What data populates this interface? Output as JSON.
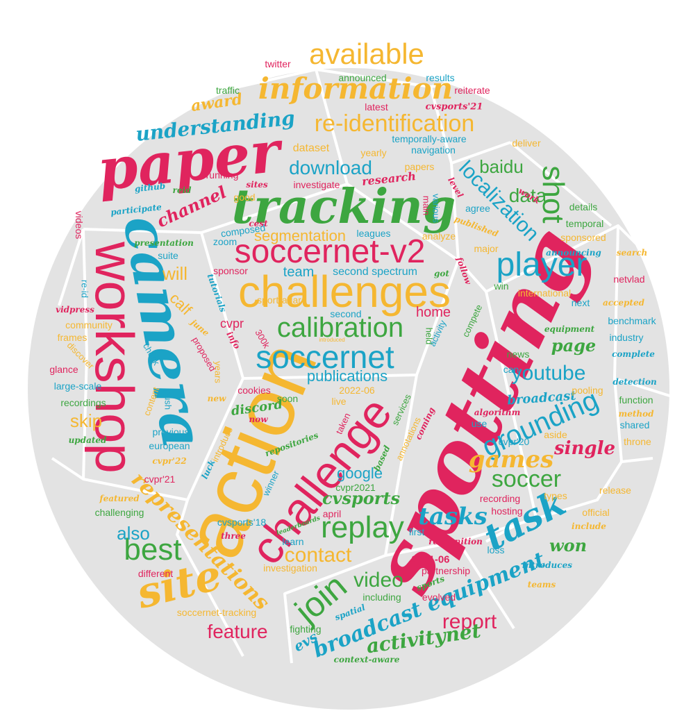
{
  "colors": {
    "red": "#e0245e",
    "yellow": "#f5b731",
    "blue": "#1ba3c6",
    "green": "#3da640",
    "panel": "#e3e3e3",
    "seam": "#ffffff"
  },
  "words": {
    "spotting": "spotting",
    "action": "action",
    "challenges": "challenges",
    "camera": "camera",
    "workshop": "workshop",
    "paper": "paper",
    "tracking": "tracking",
    "soccernet_v2": "soccernet-v2",
    "challenge": "challenge",
    "soccernet": "soccernet",
    "calibration": "calibration",
    "player": "player",
    "information": "information",
    "available": "available",
    "re_identification": "re-identification",
    "grounding": "grounding",
    "replay": "replay",
    "task": "task",
    "site": "site",
    "join": "join",
    "best": "best",
    "shot": "shot",
    "localization": "localization",
    "soccer": "soccer",
    "representations": "representations",
    "broadcast_equipment": "broadcast equipment",
    "games": "games",
    "youtube": "youtube",
    "tasks": "tasks",
    "video": "video",
    "contact": "contact",
    "report": "report",
    "understanding": "understanding",
    "download": "download",
    "feature": "feature",
    "activitynet": "activitynet",
    "also": "also",
    "data": "data",
    "baidu": "baidu",
    "publications": "publications",
    "segmentation": "segmentation",
    "skip": "skip",
    "google": "google",
    "channel": "channel",
    "will": "will",
    "calf": "calf",
    "cvsports": "cvsports",
    "single": "single",
    "page": "page",
    "award": "award",
    "won": "won",
    "team": "team",
    "home": "home",
    "cvpr": "cvpr",
    "evs": "evs",
    "discord": "discord",
    "broadcast": "broadcast",
    "dataset": "dataset",
    "research": "research",
    "twitter": "twitter",
    "announced": "announced",
    "results": "results",
    "reiterate": "reiterate",
    "traffic": "traffic",
    "latest": "latest",
    "cvsports21": "cvsports'21",
    "deliver": "deliver",
    "temporally_aware": "temporally-aware",
    "navigation": "navigation",
    "yearly": "yearly",
    "papers": "papers",
    "running": "running",
    "github": "github",
    "reid": "reid",
    "sites": "sites",
    "investigate": "investigate",
    "level": "level",
    "work": "work",
    "participate": "participate",
    "good": "good",
    "main": "main",
    "agree": "agree",
    "details": "details",
    "videos": "videos",
    "cest": "cest",
    "composed": "composed",
    "various": "various",
    "published": "published",
    "temporal": "temporal",
    "leagues": "leagues",
    "analyze": "analyze",
    "sponsored": "sponsored",
    "presentation": "presentation",
    "zoom": "zoom",
    "major": "major",
    "announcing": "announcing",
    "search": "search",
    "suite": "suite",
    "sponsor": "sponsor",
    "got": "got",
    "follow": "follow",
    "second_spectrum": "second spectrum",
    "netvlad": "netvlad",
    "re_id": "re-id",
    "tutorials": "tutorials",
    "win": "win",
    "international": "international",
    "next": "next",
    "accepted": "accepted",
    "vidpress": "vidpress",
    "sportradar": "sportradar",
    "second": "second",
    "june": "june",
    "community": "community",
    "info": "info",
    "300k": "300k",
    "held": "held",
    "compete": "compete",
    "activity": "activity",
    "equipment": "equipment",
    "benchmark": "benchmark",
    "frames": "frames",
    "proposed": "proposed",
    "introduced": "introduced",
    "industry": "industry",
    "discover": "discover",
    "check": "check",
    "news": "news",
    "complete": "complete",
    "glance": "glance",
    "years": "years",
    "can": "can",
    "detection": "detection",
    "large_scale": "large-scale",
    "cookies": "cookies",
    "2022_06": "2022-06",
    "pooling": "pooling",
    "function": "function",
    "push": "push",
    "content": "content",
    "new": "new",
    "soon": "soon",
    "live": "live",
    "recordings": "recordings",
    "services": "services",
    "method": "method",
    "shared": "shared",
    "now": "now",
    "taken": "taken",
    "algorithm": "algorithm",
    "updated": "updated",
    "previous": "previous",
    "introduce": "introduce",
    "coming": "coming",
    "annotations": "annotations",
    "use": "use",
    "aside": "aside",
    "european": "european",
    "repositories": "repositories",
    "cvpr20": "cvpr'20",
    "throne": "throne",
    "cvpr22": "cvpr'22",
    "based": "based",
    "luck": "luck",
    "cvpr21": "cvpr'21",
    "winner": "winner",
    "cvpr2021": "cvpr2021",
    "release": "release",
    "featured": "featured",
    "recording": "recording",
    "types": "types",
    "challenging": "challenging",
    "april": "april",
    "hosting": "hosting",
    "official": "official",
    "cvsports18": "cvsports'18",
    "leaderboards": "leaderboards",
    "include": "include",
    "three": "three",
    "first": "first",
    "learn": "learn",
    "recognition": "recognition",
    "loss": "loss",
    "introduces": "introduces",
    "2021_06": "2021-06",
    "different": "different",
    "investigation": "investigation",
    "partnership": "partnership",
    "teams": "teams",
    "sports": "sports",
    "including": "including",
    "evolved": "evolved",
    "spatial": "spatial",
    "soccernet_tracking": "soccernet-tracking",
    "fighting": "fighting",
    "context_aware": "context-aware"
  }
}
